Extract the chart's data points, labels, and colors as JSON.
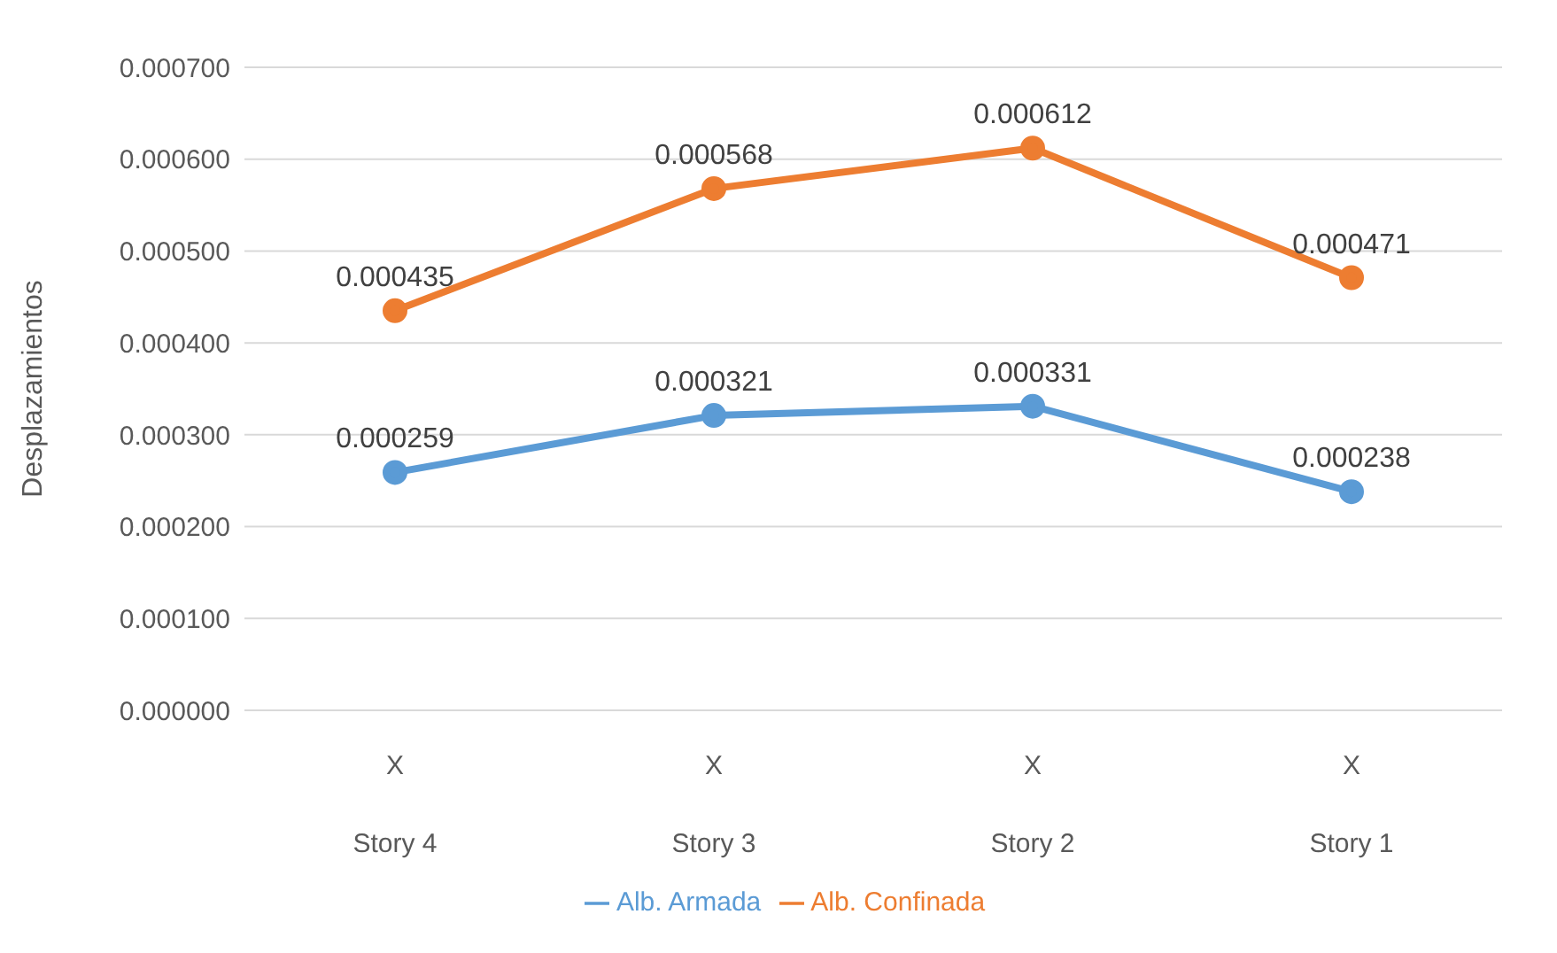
{
  "chart_data": {
    "type": "line",
    "ylabel": "Desplazamientos",
    "categories": [
      "X\nStory 4",
      "X\nStory 3",
      "X\nStory 2",
      "X\nStory 1"
    ],
    "series": [
      {
        "name": "Alb. Armada",
        "color": "#5b9bd5",
        "values": [
          0.000259,
          0.000321,
          0.000331,
          0.000238
        ]
      },
      {
        "name": "Alb. Confinada",
        "color": "#ed7d31",
        "values": [
          0.000435,
          0.000568,
          0.000612,
          0.000471
        ]
      }
    ],
    "ylim": [
      0,
      0.0007
    ],
    "yticks": [
      {
        "value": 0,
        "label": "0.000000"
      },
      {
        "value": 0.0001,
        "label": "0.000100"
      },
      {
        "value": 0.0002,
        "label": "0.000200"
      },
      {
        "value": 0.0003,
        "label": "0.000300"
      },
      {
        "value": 0.0004,
        "label": "0.000400"
      },
      {
        "value": 0.0005,
        "label": "0.000500"
      },
      {
        "value": 0.0006,
        "label": "0.000600"
      },
      {
        "value": 0.0007,
        "label": "0.000700"
      }
    ],
    "grid": "y",
    "legend": "bottom",
    "marker": "circle",
    "line_style": "solid",
    "data_labels": true
  }
}
